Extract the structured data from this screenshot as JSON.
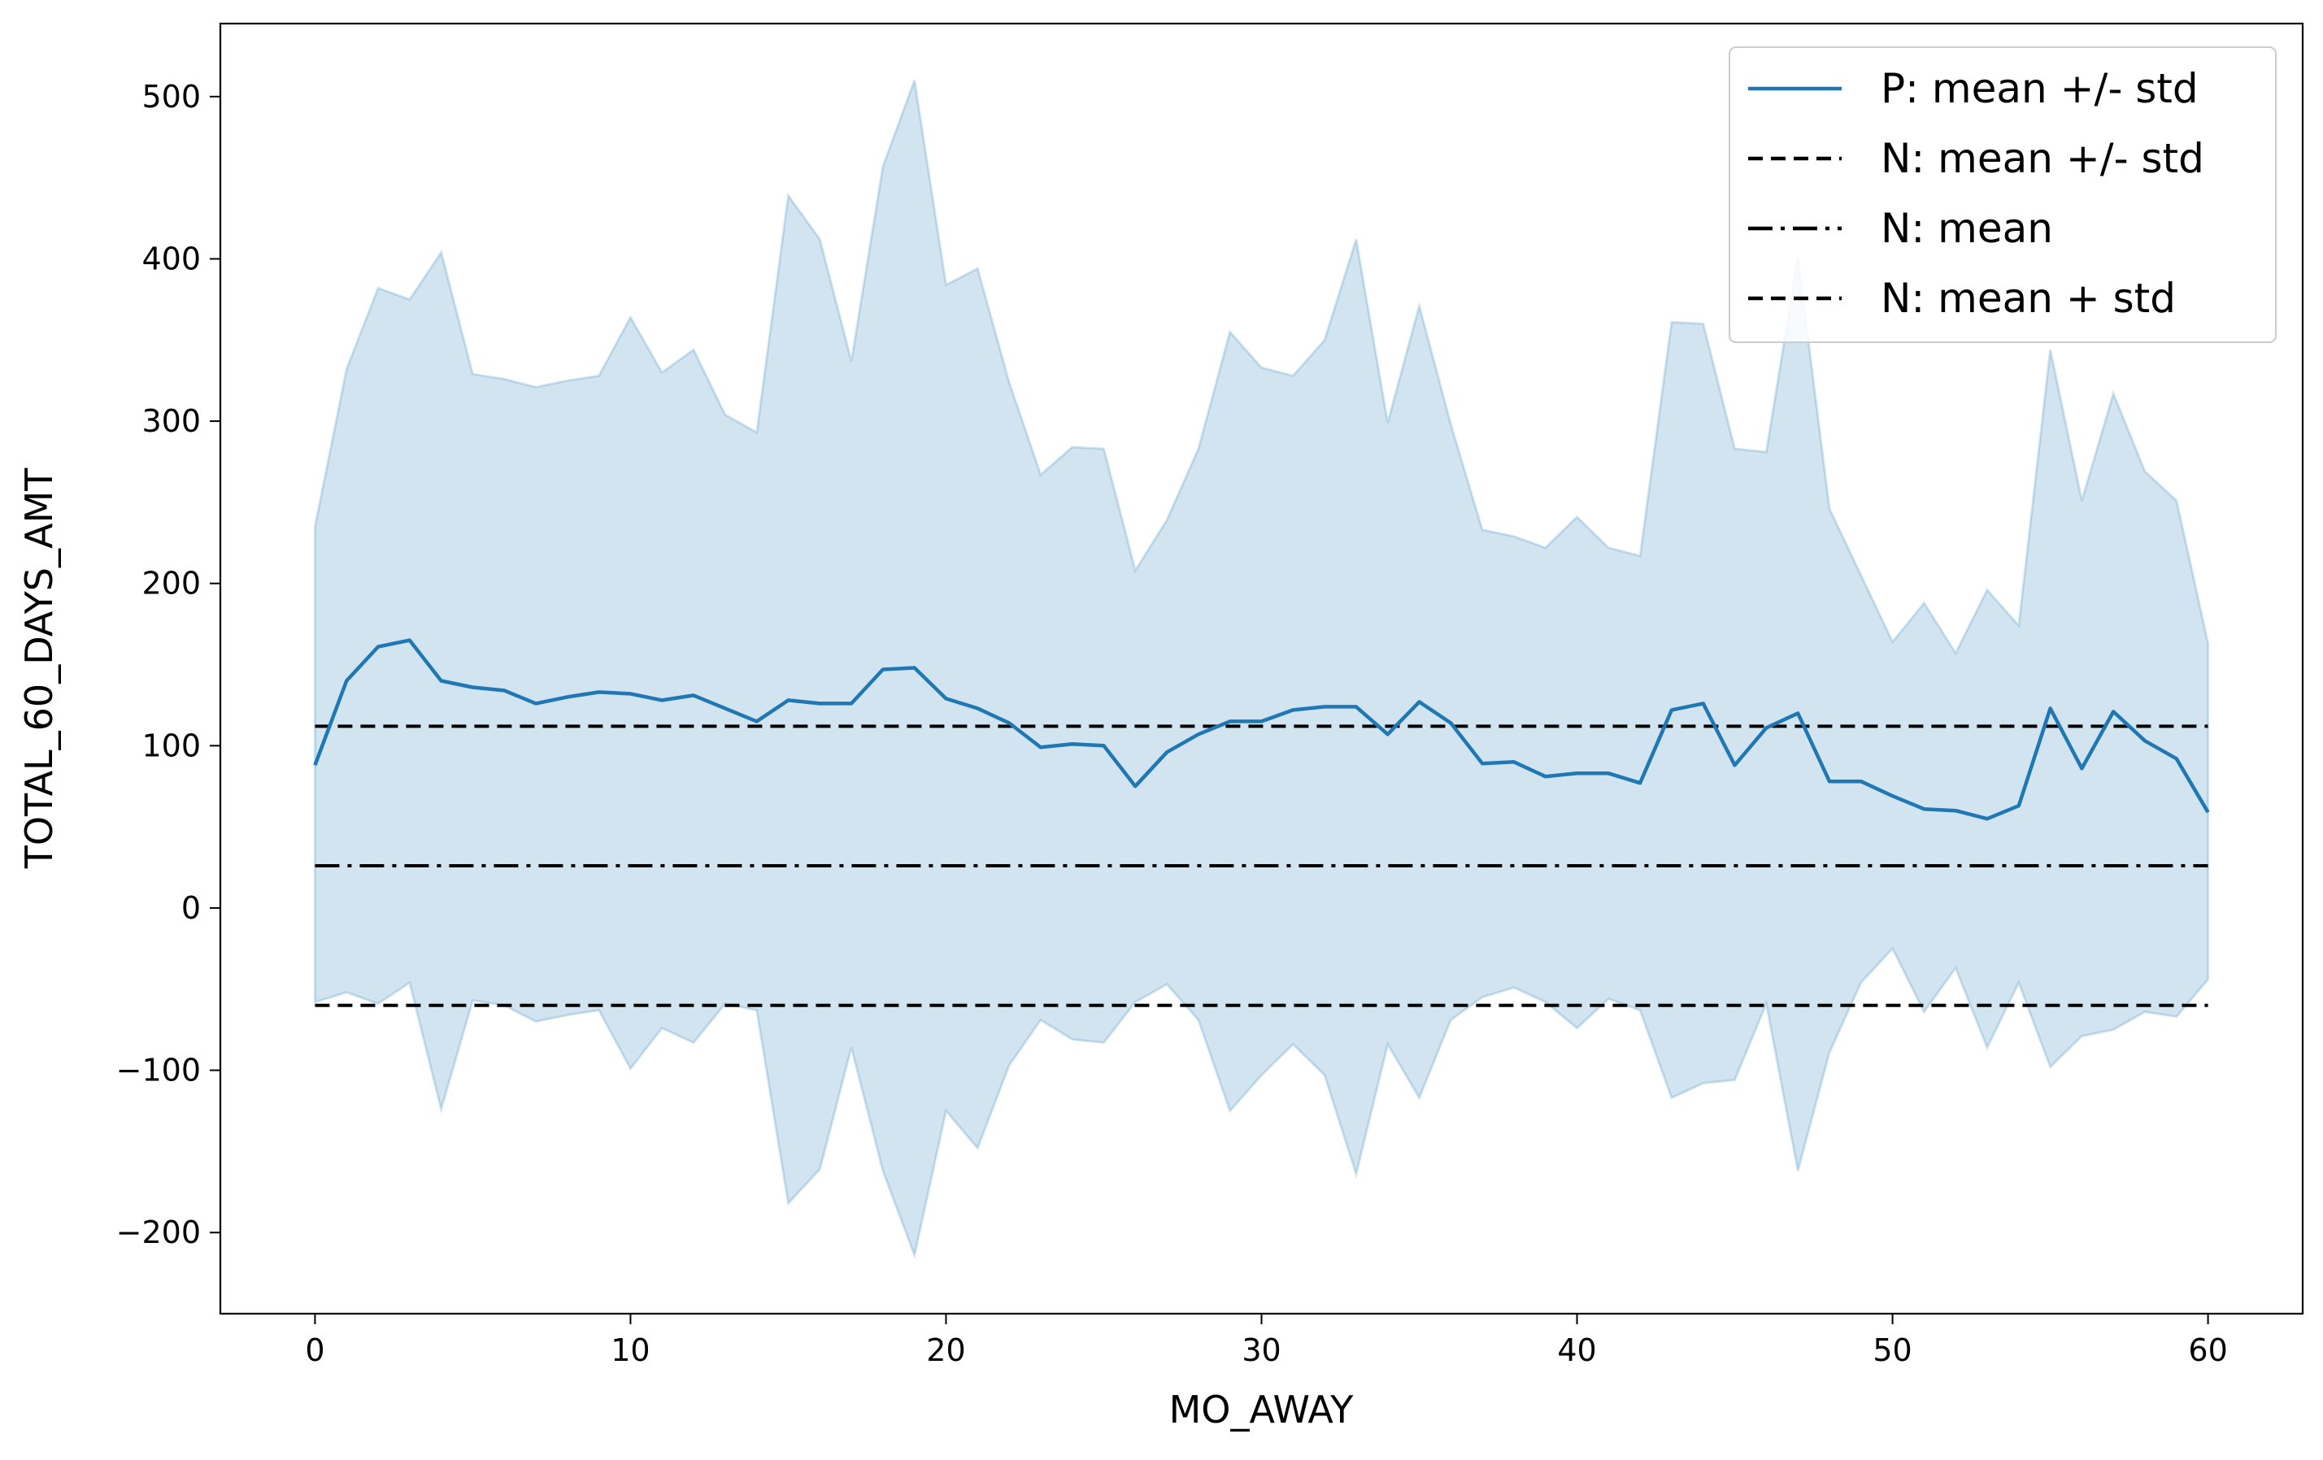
{
  "chart_data": {
    "type": "line",
    "xlabel": "MO_AWAY",
    "ylabel": "TOTAL_60_DAYS_AMT",
    "xlim": [
      -3,
      63
    ],
    "ylim": [
      -250,
      545
    ],
    "x_ticks": [
      0,
      10,
      20,
      30,
      40,
      50,
      60
    ],
    "y_ticks": [
      -200,
      -100,
      0,
      100,
      200,
      300,
      400,
      500
    ],
    "y_tick_labels": [
      "−200",
      "−100",
      "0",
      "100",
      "200",
      "300",
      "400",
      "500"
    ],
    "grid": false,
    "legend_position": "top-right",
    "legend": [
      "P: mean +/- std",
      "N: mean +/- std",
      "N: mean",
      "N: mean + std"
    ],
    "x": [
      0,
      1,
      2,
      3,
      4,
      5,
      6,
      7,
      8,
      9,
      10,
      11,
      12,
      13,
      14,
      15,
      16,
      17,
      18,
      19,
      20,
      21,
      22,
      23,
      24,
      25,
      26,
      27,
      28,
      29,
      30,
      31,
      32,
      33,
      34,
      35,
      36,
      37,
      38,
      39,
      40,
      41,
      42,
      43,
      44,
      45,
      46,
      47,
      48,
      49,
      50,
      51,
      52,
      53,
      54,
      55,
      56,
      57,
      58,
      59,
      60
    ],
    "series": [
      {
        "name": "P: mean +/- std",
        "color": "#1f77b4",
        "style": "solid",
        "mean": [
          88,
          140,
          161,
          165,
          140,
          136,
          134,
          126,
          130,
          133,
          132,
          128,
          131,
          123,
          115,
          128,
          126,
          126,
          147,
          148,
          129,
          123,
          114,
          99,
          101,
          100,
          75,
          96,
          107,
          115,
          115,
          122,
          124,
          124,
          107,
          127,
          114,
          89,
          90,
          81,
          83,
          83,
          77,
          122,
          126,
          88,
          111,
          120,
          78,
          78,
          69,
          61,
          60,
          55,
          63,
          123,
          86,
          121,
          103,
          92,
          59
        ],
        "upper": [
          235,
          332,
          382,
          375,
          404,
          329,
          326,
          321,
          325,
          328,
          364,
          330,
          344,
          304,
          293,
          439,
          412,
          337,
          457,
          510,
          384,
          394,
          324,
          267,
          284,
          283,
          208,
          239,
          283,
          355,
          333,
          328,
          350,
          412,
          299,
          371,
          298,
          233,
          229,
          222,
          241,
          222,
          217,
          361,
          360,
          283,
          281,
          401,
          246,
          205,
          164,
          188,
          157,
          196,
          174,
          344,
          251,
          317,
          269,
          251,
          163
        ],
        "lower": [
          -58,
          -52,
          -59,
          -46,
          -124,
          -57,
          -60,
          -70,
          -66,
          -63,
          -99,
          -74,
          -83,
          -59,
          -63,
          -182,
          -161,
          -86,
          -162,
          -214,
          -125,
          -148,
          -97,
          -69,
          -81,
          -83,
          -58,
          -47,
          -69,
          -125,
          -103,
          -84,
          -103,
          -164,
          -84,
          -117,
          -69,
          -55,
          -49,
          -58,
          -74,
          -56,
          -63,
          -117,
          -108,
          -106,
          -59,
          -162,
          -89,
          -46,
          -25,
          -64,
          -37,
          -86,
          -46,
          -98,
          -79,
          -75,
          -64,
          -67,
          -44
        ]
      },
      {
        "name": "N: mean +/- std",
        "style": "dashed",
        "color": "#000000",
        "y": -60
      },
      {
        "name": "N: mean",
        "style": "dashdot",
        "color": "#000000",
        "y": 26
      },
      {
        "name": "N: mean + std",
        "style": "dashed",
        "color": "#000000",
        "y": 112
      }
    ]
  }
}
